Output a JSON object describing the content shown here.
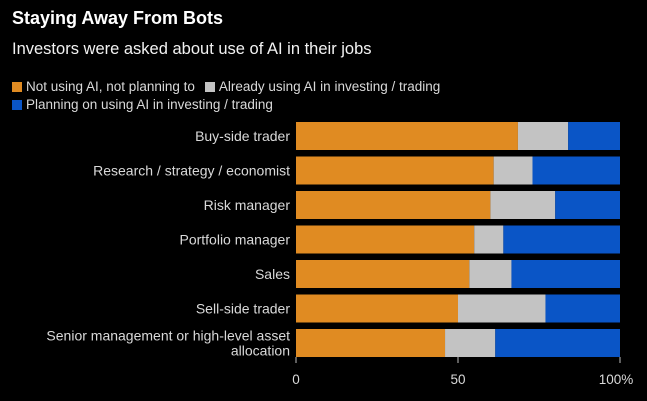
{
  "chart_data": {
    "type": "bar",
    "orientation": "horizontal",
    "stacked": true,
    "title": "Staying Away From Bots",
    "subtitle": "Investors were asked about use of AI in their jobs",
    "categories": [
      [
        "Buy-side trader"
      ],
      [
        "Research / strategy / economist"
      ],
      [
        "Risk manager"
      ],
      [
        "Portfolio manager"
      ],
      [
        "Sales"
      ],
      [
        "Sell-side trader"
      ],
      [
        "Senior management or high-level asset",
        "allocation"
      ]
    ],
    "series": [
      {
        "name": "Not using AI, not planning to",
        "color": "#e08b22",
        "values": [
          68.5,
          61,
          60,
          55,
          53.5,
          50,
          46
        ]
      },
      {
        "name": "Already using AI in investing / trading",
        "color": "#c3c3c3",
        "values": [
          15.5,
          12,
          20,
          9,
          13,
          27,
          15.5
        ]
      },
      {
        "name": "Planning on using AI in investing / trading",
        "color": "#0a55c6",
        "values": [
          16,
          27,
          20,
          36,
          33.5,
          23,
          38.5
        ]
      }
    ],
    "xlim": [
      0,
      100
    ],
    "xticks": [
      {
        "value": 0,
        "label": "0"
      },
      {
        "value": 50,
        "label": "50"
      },
      {
        "value": 100,
        "label": "100%"
      }
    ],
    "legend_placement": "top-left",
    "grid": false
  }
}
